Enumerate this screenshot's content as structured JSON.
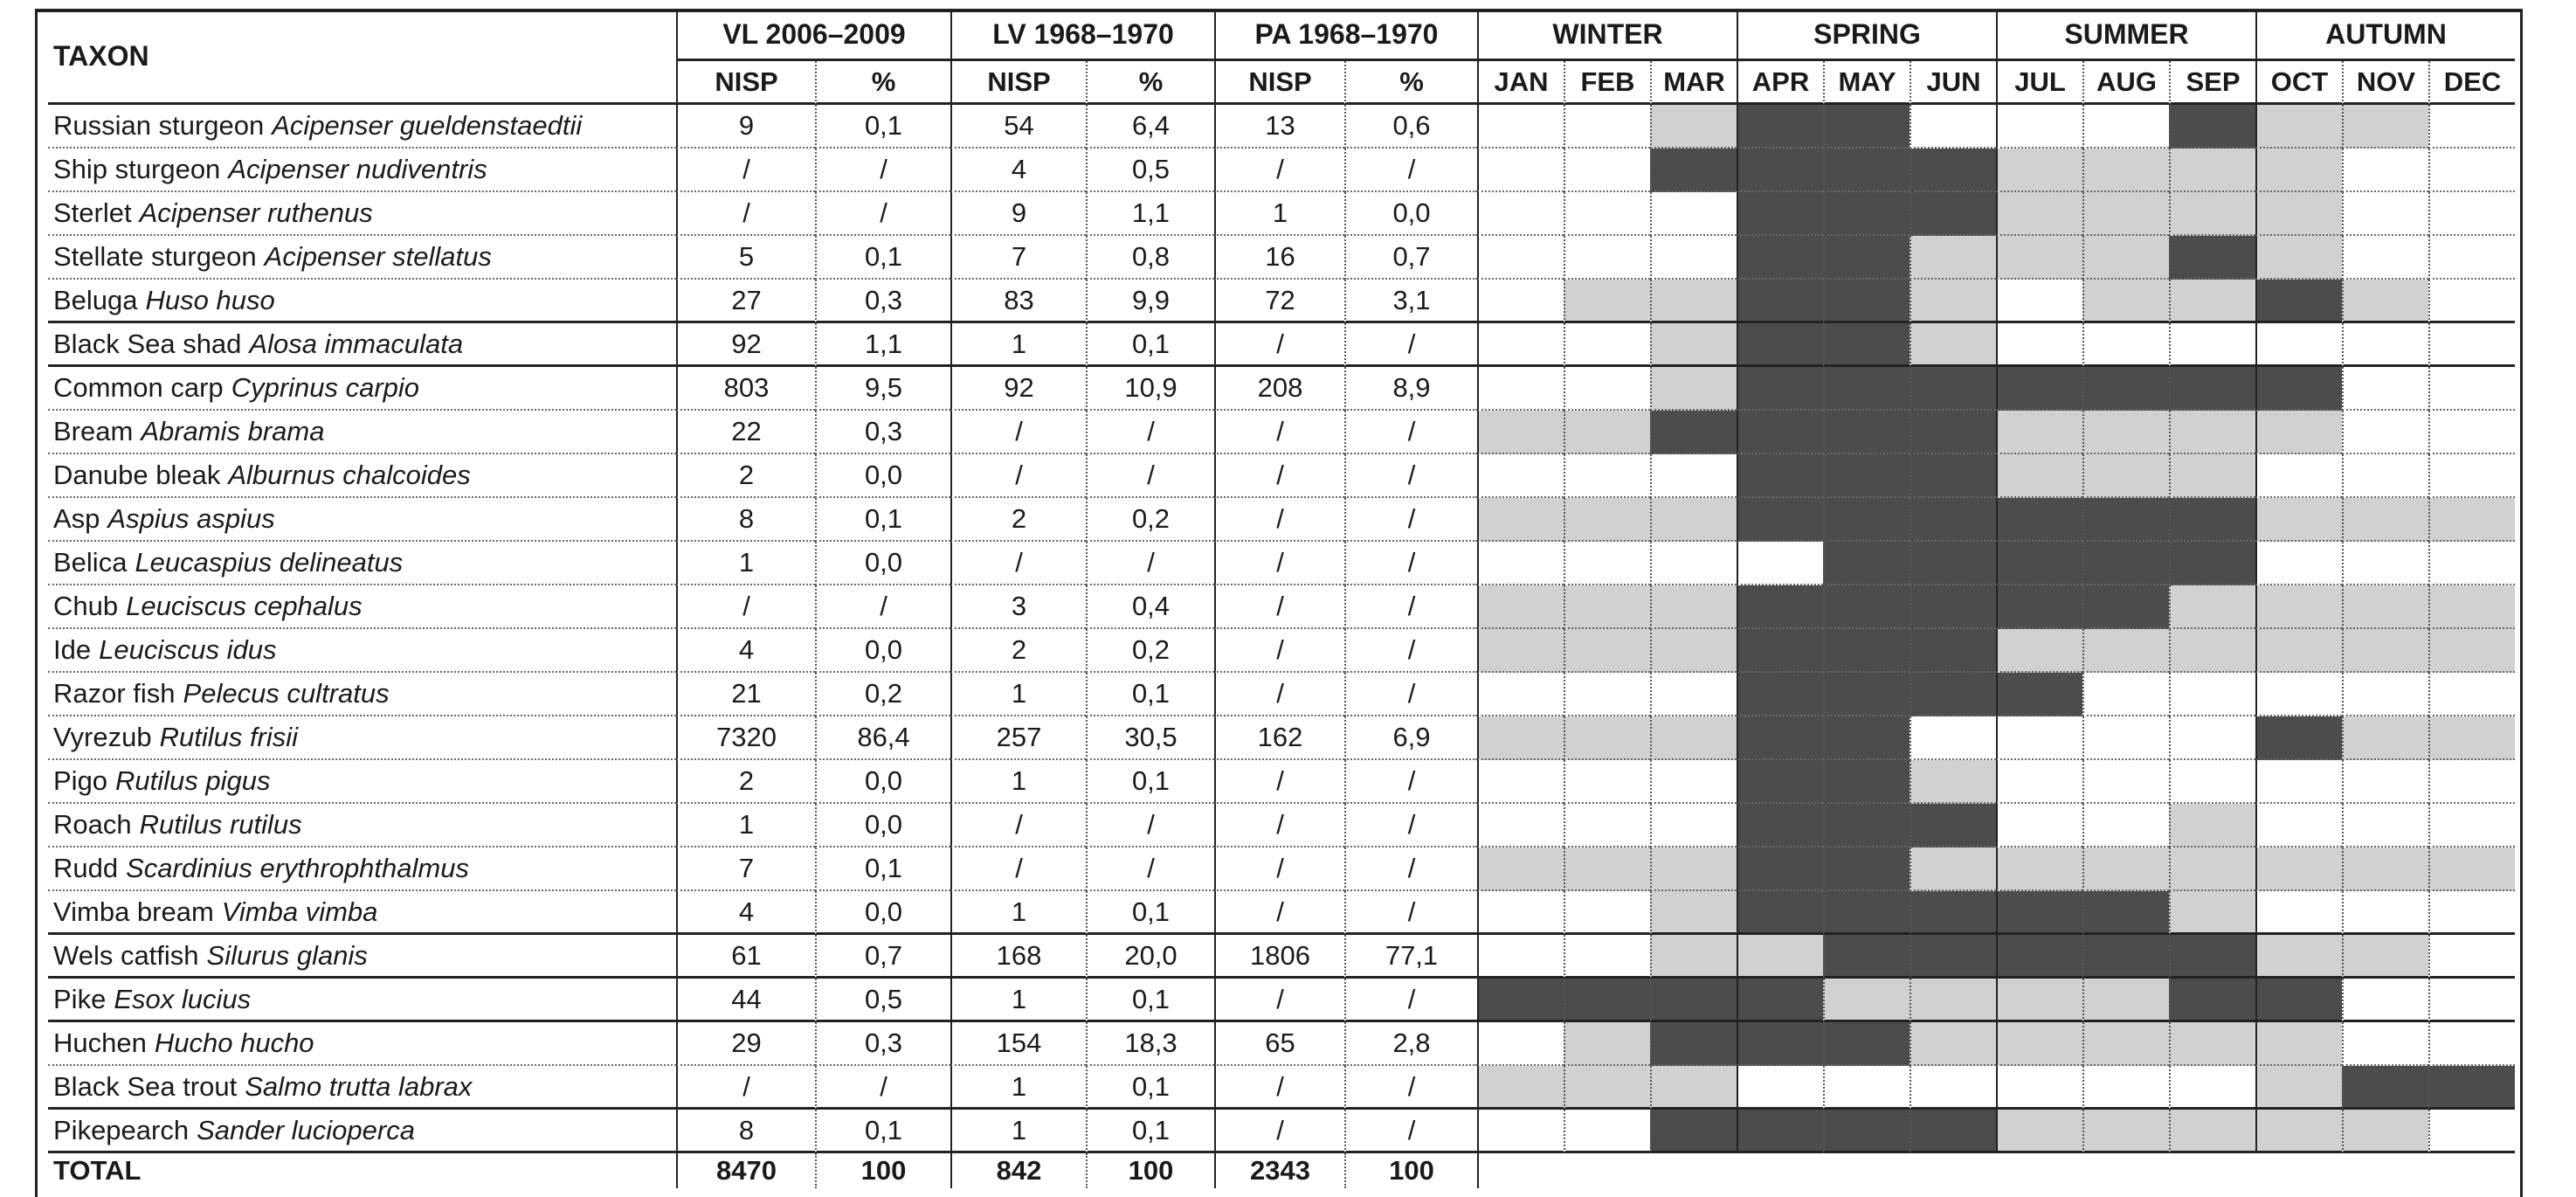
{
  "header": {
    "taxon": "TAXON",
    "sites": [
      "VL 2006–2009",
      "LV 1968–1970",
      "PA 1968–1970"
    ],
    "nisp": "NISP",
    "percent": "%",
    "seasons": [
      "WINTER",
      "SPRING",
      "SUMMER",
      "AUTUMN"
    ],
    "months": [
      "JAN",
      "FEB",
      "MAR",
      "APR",
      "MAY",
      "JUN",
      "JUL",
      "AUG",
      "SEP",
      "OCT",
      "NOV",
      "DEC"
    ]
  },
  "season_colors": {
    "0": "#ffffff",
    "1": "#d1d1d1",
    "2": "#4c4c4c"
  },
  "rows": [
    {
      "common": "Russian sturgeon",
      "scientific": "Acipenser gueldenstaedtii",
      "values": [
        "9",
        "0,1",
        "54",
        "6,4",
        "13",
        "0,6"
      ],
      "months": [
        0,
        0,
        1,
        2,
        2,
        0,
        0,
        0,
        2,
        1,
        1,
        0
      ]
    },
    {
      "common": "Ship sturgeon",
      "scientific": "Acipenser nudiventris",
      "values": [
        "/",
        "/",
        "4",
        "0,5",
        "/",
        "/"
      ],
      "months": [
        0,
        0,
        2,
        2,
        2,
        2,
        1,
        1,
        1,
        1,
        0,
        0
      ]
    },
    {
      "common": "Sterlet",
      "scientific": "Acipenser ruthenus",
      "values": [
        "/",
        "/",
        "9",
        "1,1",
        "1",
        "0,0"
      ],
      "months": [
        0,
        0,
        0,
        2,
        2,
        2,
        1,
        1,
        1,
        1,
        0,
        0
      ]
    },
    {
      "common": "Stellate sturgeon",
      "scientific": "Acipenser stellatus",
      "values": [
        "5",
        "0,1",
        "7",
        "0,8",
        "16",
        "0,7"
      ],
      "months": [
        0,
        0,
        0,
        2,
        2,
        1,
        1,
        1,
        2,
        1,
        0,
        0
      ]
    },
    {
      "common": "Beluga",
      "scientific": "Huso huso",
      "values": [
        "27",
        "0,3",
        "83",
        "9,9",
        "72",
        "3,1"
      ],
      "months": [
        0,
        1,
        1,
        2,
        2,
        1,
        0,
        1,
        1,
        2,
        1,
        0
      ]
    },
    {
      "common": "Black Sea shad",
      "scientific": "Alosa immaculata",
      "values": [
        "92",
        "1,1",
        "1",
        "0,1",
        "/",
        "/"
      ],
      "months": [
        0,
        0,
        1,
        2,
        2,
        1,
        0,
        0,
        0,
        0,
        0,
        0
      ]
    },
    {
      "common": "Common carp",
      "scientific": "Cyprinus carpio",
      "values": [
        "803",
        "9,5",
        "92",
        "10,9",
        "208",
        "8,9"
      ],
      "months": [
        0,
        0,
        1,
        2,
        2,
        2,
        2,
        2,
        2,
        2,
        0,
        0
      ]
    },
    {
      "common": "Bream",
      "scientific": "Abramis brama",
      "values": [
        "22",
        "0,3",
        "/",
        "/",
        "/",
        "/"
      ],
      "months": [
        1,
        1,
        2,
        2,
        2,
        2,
        1,
        1,
        1,
        1,
        0,
        0
      ]
    },
    {
      "common": "Danube bleak",
      "scientific": "Alburnus chalcoides",
      "values": [
        "2",
        "0,0",
        "/",
        "/",
        "/",
        "/"
      ],
      "months": [
        0,
        0,
        0,
        2,
        2,
        2,
        1,
        1,
        1,
        0,
        0,
        0
      ]
    },
    {
      "common": "Asp",
      "scientific": "Aspius aspius",
      "values": [
        "8",
        "0,1",
        "2",
        "0,2",
        "/",
        "/"
      ],
      "months": [
        1,
        1,
        1,
        2,
        2,
        2,
        2,
        2,
        2,
        1,
        1,
        1
      ]
    },
    {
      "common": "Belica",
      "scientific": "Leucaspius delineatus",
      "values": [
        "1",
        "0,0",
        "/",
        "/",
        "/",
        "/"
      ],
      "months": [
        0,
        0,
        0,
        0,
        2,
        2,
        2,
        2,
        2,
        0,
        0,
        0
      ]
    },
    {
      "common": "Chub",
      "scientific": "Leuciscus cephalus",
      "values": [
        "/",
        "/",
        "3",
        "0,4",
        "/",
        "/"
      ],
      "months": [
        1,
        1,
        1,
        2,
        2,
        2,
        2,
        2,
        1,
        1,
        1,
        1
      ]
    },
    {
      "common": "Ide",
      "scientific": "Leuciscus idus",
      "values": [
        "4",
        "0,0",
        "2",
        "0,2",
        "/",
        "/"
      ],
      "months": [
        1,
        1,
        1,
        2,
        2,
        2,
        1,
        1,
        1,
        1,
        1,
        1
      ]
    },
    {
      "common": "Razor fish",
      "scientific": "Pelecus cultratus",
      "values": [
        "21",
        "0,2",
        "1",
        "0,1",
        "/",
        "/"
      ],
      "months": [
        0,
        0,
        0,
        2,
        2,
        2,
        2,
        0,
        0,
        0,
        0,
        0
      ]
    },
    {
      "common": "Vyrezub",
      "scientific": "Rutilus frisii",
      "values": [
        "7320",
        "86,4",
        "257",
        "30,5",
        "162",
        "6,9"
      ],
      "months": [
        1,
        1,
        1,
        2,
        2,
        0,
        0,
        0,
        0,
        2,
        1,
        1
      ]
    },
    {
      "common": "Pigo",
      "scientific": "Rutilus pigus",
      "values": [
        "2",
        "0,0",
        "1",
        "0,1",
        "/",
        "/"
      ],
      "months": [
        0,
        0,
        0,
        2,
        2,
        1,
        0,
        0,
        0,
        0,
        0,
        0
      ]
    },
    {
      "common": "Roach",
      "scientific": "Rutilus rutilus",
      "values": [
        "1",
        "0,0",
        "/",
        "/",
        "/",
        "/"
      ],
      "months": [
        0,
        0,
        0,
        2,
        2,
        2,
        0,
        0,
        1,
        0,
        0,
        0
      ]
    },
    {
      "common": "Rudd",
      "scientific": "Scardinius erythrophthalmus",
      "values": [
        "7",
        "0,1",
        "/",
        "/",
        "/",
        "/"
      ],
      "months": [
        1,
        1,
        1,
        2,
        2,
        1,
        1,
        1,
        1,
        1,
        1,
        1
      ]
    },
    {
      "common": "Vimba bream",
      "scientific": "Vimba vimba",
      "values": [
        "4",
        "0,0",
        "1",
        "0,1",
        "/",
        "/"
      ],
      "months": [
        0,
        0,
        1,
        2,
        2,
        2,
        2,
        2,
        1,
        0,
        0,
        0
      ]
    },
    {
      "common": "Wels catfish",
      "scientific": "Silurus glanis",
      "values": [
        "61",
        "0,7",
        "168",
        "20,0",
        "1806",
        "77,1"
      ],
      "months": [
        0,
        0,
        1,
        1,
        2,
        2,
        2,
        2,
        2,
        1,
        1,
        0
      ]
    },
    {
      "common": "Pike",
      "scientific": "Esox lucius",
      "values": [
        "44",
        "0,5",
        "1",
        "0,1",
        "/",
        "/"
      ],
      "months": [
        2,
        2,
        2,
        2,
        1,
        1,
        1,
        1,
        2,
        2,
        0,
        0
      ]
    },
    {
      "common": "Huchen",
      "scientific": "Hucho hucho",
      "values": [
        "29",
        "0,3",
        "154",
        "18,3",
        "65",
        "2,8"
      ],
      "months": [
        0,
        1,
        2,
        2,
        2,
        1,
        1,
        1,
        1,
        1,
        0,
        0
      ]
    },
    {
      "common": "Black Sea trout",
      "scientific": "Salmo trutta labrax",
      "values": [
        "/",
        "/",
        "1",
        "0,1",
        "/",
        "/"
      ],
      "months": [
        1,
        1,
        1,
        0,
        0,
        0,
        0,
        0,
        0,
        1,
        2,
        2
      ]
    },
    {
      "common": "Pikepearch",
      "scientific": "Sander lucioperca",
      "values": [
        "8",
        "0,1",
        "1",
        "0,1",
        "/",
        "/"
      ],
      "months": [
        0,
        0,
        2,
        2,
        2,
        2,
        1,
        1,
        1,
        1,
        1,
        0
      ]
    }
  ],
  "total": {
    "label": "TOTAL",
    "values": [
      "8470",
      "100",
      "842",
      "100",
      "2343",
      "100"
    ]
  }
}
